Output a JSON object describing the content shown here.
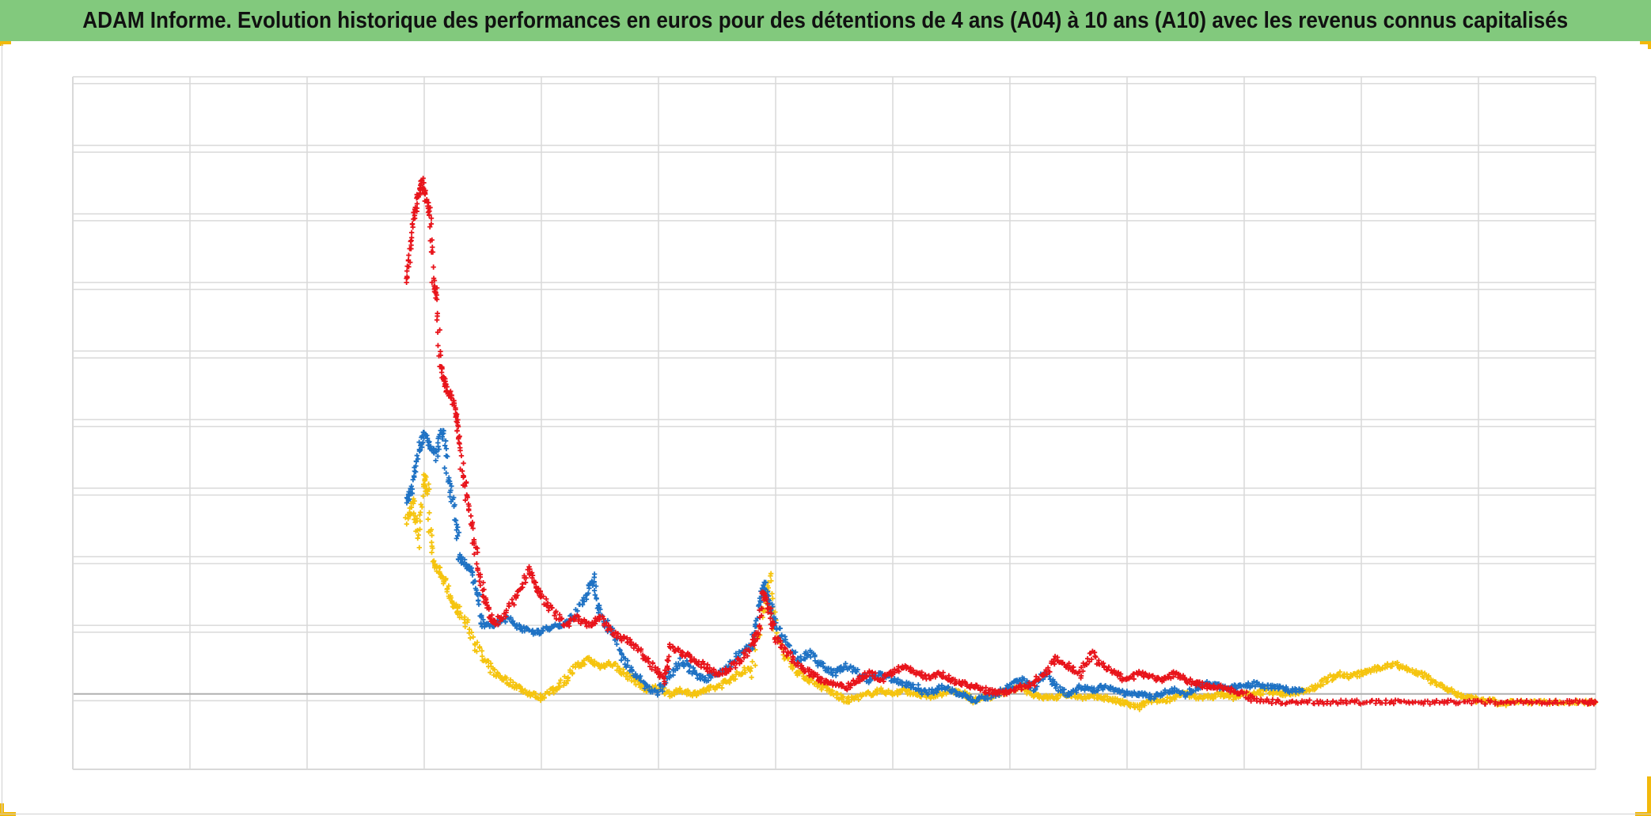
{
  "title": "ADAM Informe. Evolution historique des performances en euros pour des détentions de 4 ans (A04) à 10 ans (A10) avec les revenus connus capitalisés",
  "colors": {
    "title_bar": "#82c97d",
    "corner_marks": "#f2b90c",
    "series_red": "#e8141b",
    "series_blue": "#1f72c4",
    "series_yellow": "#f5c40f",
    "grid": "#d9d9d9",
    "baseline": "#b0b0b0"
  },
  "chart_data": {
    "type": "scatter",
    "title": "ADAM Informe. Evolution historique des performances en euros pour des détentions de 4 ans (A04) à 10 ans (A10) avec les revenus connus capitalisés",
    "xlabel": "",
    "ylabel": "",
    "x_ticks_shown": false,
    "y_ticks_shown": false,
    "xlim": [
      0,
      13
    ],
    "ylim": [
      -1.1,
      9
    ],
    "grid": true,
    "legend": "none",
    "marker": "plus",
    "series": [
      {
        "color": "#f5c40f",
        "points": [
          [
            2.85,
            2.5
          ],
          [
            2.9,
            2.8
          ],
          [
            2.95,
            2.3
          ],
          [
            3.0,
            3.2
          ],
          [
            3.03,
            2.9
          ],
          [
            3.08,
            1.9
          ],
          [
            3.12,
            1.8
          ],
          [
            3.18,
            1.6
          ],
          [
            3.25,
            1.3
          ],
          [
            3.3,
            1.2
          ],
          [
            3.4,
            0.9
          ],
          [
            3.5,
            0.5
          ],
          [
            3.6,
            0.3
          ],
          [
            3.7,
            0.2
          ],
          [
            3.8,
            0.1
          ],
          [
            3.9,
            0.0
          ],
          [
            4.0,
            -0.05
          ],
          [
            4.1,
            0.05
          ],
          [
            4.2,
            0.2
          ],
          [
            4.3,
            0.4
          ],
          [
            4.4,
            0.5
          ],
          [
            4.5,
            0.4
          ],
          [
            4.6,
            0.45
          ],
          [
            4.7,
            0.3
          ],
          [
            4.8,
            0.2
          ],
          [
            4.9,
            0.05
          ],
          [
            5.0,
            0.1
          ],
          [
            5.1,
            0.0
          ],
          [
            5.2,
            0.05
          ],
          [
            5.3,
            0.0
          ],
          [
            5.4,
            0.05
          ],
          [
            5.5,
            0.1
          ],
          [
            5.6,
            0.2
          ],
          [
            5.7,
            0.3
          ],
          [
            5.8,
            0.4
          ],
          [
            5.9,
            1.2
          ],
          [
            5.95,
            1.7
          ],
          [
            6.0,
            0.9
          ],
          [
            6.1,
            0.5
          ],
          [
            6.2,
            0.3
          ],
          [
            6.3,
            0.2
          ],
          [
            6.4,
            0.1
          ],
          [
            6.5,
            0.0
          ],
          [
            6.6,
            -0.1
          ],
          [
            6.7,
            -0.05
          ],
          [
            6.8,
            0.0
          ],
          [
            6.9,
            0.05
          ],
          [
            7.0,
            0.0
          ],
          [
            7.1,
            0.05
          ],
          [
            7.2,
            0.0
          ],
          [
            7.3,
            -0.05
          ],
          [
            7.4,
            0.0
          ],
          [
            7.5,
            0.05
          ],
          [
            7.6,
            0.0
          ],
          [
            7.7,
            -0.1
          ],
          [
            7.8,
            -0.05
          ],
          [
            7.9,
            0.0
          ],
          [
            8.0,
            0.05
          ],
          [
            8.1,
            0.1
          ],
          [
            8.2,
            0.0
          ],
          [
            8.3,
            -0.05
          ],
          [
            8.4,
            -0.05
          ],
          [
            8.5,
            0.0
          ],
          [
            8.6,
            -0.05
          ],
          [
            8.7,
            -0.05
          ],
          [
            8.8,
            -0.05
          ],
          [
            8.9,
            -0.1
          ],
          [
            9.0,
            -0.15
          ],
          [
            9.1,
            -0.2
          ],
          [
            9.2,
            -0.1
          ],
          [
            9.3,
            -0.1
          ],
          [
            9.4,
            -0.05
          ],
          [
            9.5,
            0.0
          ],
          [
            9.6,
            -0.05
          ],
          [
            9.7,
            -0.05
          ],
          [
            9.8,
            0.0
          ],
          [
            9.9,
            -0.05
          ],
          [
            10.0,
            0.0
          ],
          [
            10.1,
            0.0
          ],
          [
            10.2,
            0.05
          ],
          [
            10.3,
            0.0
          ],
          [
            10.4,
            0.0
          ],
          [
            10.5,
            0.05
          ],
          [
            10.6,
            0.1
          ],
          [
            10.7,
            0.2
          ],
          [
            10.8,
            0.3
          ],
          [
            10.9,
            0.25
          ],
          [
            11.0,
            0.3
          ],
          [
            11.1,
            0.35
          ],
          [
            11.2,
            0.4
          ],
          [
            11.3,
            0.45
          ],
          [
            11.4,
            0.35
          ],
          [
            11.5,
            0.3
          ],
          [
            11.6,
            0.2
          ],
          [
            11.7,
            0.1
          ],
          [
            11.8,
            0.0
          ],
          [
            11.9,
            -0.05
          ],
          [
            12.0,
            -0.1
          ],
          [
            12.1,
            -0.1
          ],
          [
            12.2,
            -0.15
          ],
          [
            12.3,
            -0.12
          ],
          [
            12.5,
            -0.12
          ],
          [
            12.7,
            -0.12
          ],
          [
            12.9,
            -0.12
          ],
          [
            13.0,
            -0.12
          ]
        ]
      },
      {
        "color": "#1f72c4",
        "points": [
          [
            2.85,
            2.8
          ],
          [
            2.9,
            3.0
          ],
          [
            2.95,
            3.5
          ],
          [
            3.0,
            3.8
          ],
          [
            3.05,
            3.6
          ],
          [
            3.1,
            3.5
          ],
          [
            3.15,
            3.9
          ],
          [
            3.2,
            3.2
          ],
          [
            3.25,
            2.8
          ],
          [
            3.3,
            2.0
          ],
          [
            3.35,
            1.9
          ],
          [
            3.4,
            1.8
          ],
          [
            3.45,
            1.5
          ],
          [
            3.5,
            1.0
          ],
          [
            3.6,
            1.0
          ],
          [
            3.7,
            1.1
          ],
          [
            3.8,
            1.0
          ],
          [
            3.9,
            0.9
          ],
          [
            4.0,
            0.9
          ],
          [
            4.1,
            1.0
          ],
          [
            4.2,
            1.0
          ],
          [
            4.3,
            1.2
          ],
          [
            4.4,
            1.5
          ],
          [
            4.45,
            1.7
          ],
          [
            4.5,
            1.2
          ],
          [
            4.6,
            0.9
          ],
          [
            4.7,
            0.5
          ],
          [
            4.8,
            0.3
          ],
          [
            4.9,
            0.1
          ],
          [
            5.0,
            0.0
          ],
          [
            5.1,
            0.3
          ],
          [
            5.2,
            0.5
          ],
          [
            5.3,
            0.3
          ],
          [
            5.4,
            0.2
          ],
          [
            5.5,
            0.3
          ],
          [
            5.6,
            0.4
          ],
          [
            5.7,
            0.6
          ],
          [
            5.8,
            0.7
          ],
          [
            5.85,
            1.2
          ],
          [
            5.9,
            1.6
          ],
          [
            5.95,
            1.3
          ],
          [
            6.0,
            1.0
          ],
          [
            6.1,
            0.7
          ],
          [
            6.2,
            0.5
          ],
          [
            6.3,
            0.6
          ],
          [
            6.4,
            0.4
          ],
          [
            6.5,
            0.3
          ],
          [
            6.6,
            0.4
          ],
          [
            6.7,
            0.3
          ],
          [
            6.8,
            0.2
          ],
          [
            6.9,
            0.3
          ],
          [
            7.0,
            0.2
          ],
          [
            7.1,
            0.15
          ],
          [
            7.2,
            0.1
          ],
          [
            7.3,
            0.0
          ],
          [
            7.4,
            0.1
          ],
          [
            7.5,
            0.05
          ],
          [
            7.6,
            0.0
          ],
          [
            7.7,
            -0.1
          ],
          [
            7.8,
            -0.05
          ],
          [
            7.9,
            0.0
          ],
          [
            8.0,
            0.1
          ],
          [
            8.1,
            0.2
          ],
          [
            8.2,
            0.1
          ],
          [
            8.3,
            0.3
          ],
          [
            8.4,
            0.1
          ],
          [
            8.5,
            0.0
          ],
          [
            8.6,
            0.1
          ],
          [
            8.7,
            0.05
          ],
          [
            8.8,
            0.1
          ],
          [
            8.9,
            0.05
          ],
          [
            9.0,
            0.0
          ],
          [
            9.1,
            0.0
          ],
          [
            9.2,
            -0.05
          ],
          [
            9.3,
            0.0
          ],
          [
            9.4,
            0.05
          ],
          [
            9.5,
            0.0
          ],
          [
            9.6,
            0.1
          ],
          [
            9.7,
            0.15
          ],
          [
            9.8,
            0.1
          ],
          [
            9.9,
            0.1
          ],
          [
            10.0,
            0.1
          ],
          [
            10.1,
            0.15
          ],
          [
            10.2,
            0.1
          ],
          [
            10.3,
            0.1
          ],
          [
            10.4,
            0.05
          ],
          [
            10.5,
            0.05
          ]
        ]
      },
      {
        "color": "#e8141b",
        "points": [
          [
            2.85,
            6.0
          ],
          [
            2.88,
            6.5
          ],
          [
            2.92,
            7.0
          ],
          [
            2.95,
            7.3
          ],
          [
            2.98,
            7.5
          ],
          [
            3.02,
            7.2
          ],
          [
            3.05,
            7.0
          ],
          [
            3.08,
            6.0
          ],
          [
            3.1,
            5.8
          ],
          [
            3.14,
            4.8
          ],
          [
            3.17,
            4.6
          ],
          [
            3.2,
            4.4
          ],
          [
            3.25,
            4.3
          ],
          [
            3.28,
            4.0
          ],
          [
            3.3,
            3.6
          ],
          [
            3.35,
            3.0
          ],
          [
            3.4,
            2.5
          ],
          [
            3.45,
            2.0
          ],
          [
            3.5,
            1.5
          ],
          [
            3.55,
            1.2
          ],
          [
            3.6,
            1.0
          ],
          [
            3.7,
            1.2
          ],
          [
            3.8,
            1.5
          ],
          [
            3.9,
            1.8
          ],
          [
            3.95,
            1.6
          ],
          [
            4.0,
            1.4
          ],
          [
            4.1,
            1.2
          ],
          [
            4.2,
            1.0
          ],
          [
            4.3,
            1.1
          ],
          [
            4.4,
            1.0
          ],
          [
            4.5,
            1.1
          ],
          [
            4.6,
            0.9
          ],
          [
            4.7,
            0.8
          ],
          [
            4.8,
            0.7
          ],
          [
            4.9,
            0.5
          ],
          [
            5.0,
            0.3
          ],
          [
            5.05,
            0.2
          ],
          [
            5.1,
            0.7
          ],
          [
            5.2,
            0.6
          ],
          [
            5.3,
            0.5
          ],
          [
            5.4,
            0.4
          ],
          [
            5.5,
            0.3
          ],
          [
            5.6,
            0.35
          ],
          [
            5.7,
            0.5
          ],
          [
            5.8,
            0.7
          ],
          [
            5.85,
            0.9
          ],
          [
            5.9,
            1.5
          ],
          [
            5.95,
            1.2
          ],
          [
            6.0,
            0.8
          ],
          [
            6.1,
            0.6
          ],
          [
            6.2,
            0.4
          ],
          [
            6.3,
            0.3
          ],
          [
            6.4,
            0.2
          ],
          [
            6.5,
            0.15
          ],
          [
            6.6,
            0.1
          ],
          [
            6.7,
            0.2
          ],
          [
            6.8,
            0.3
          ],
          [
            6.9,
            0.2
          ],
          [
            7.0,
            0.3
          ],
          [
            7.1,
            0.4
          ],
          [
            7.2,
            0.3
          ],
          [
            7.3,
            0.25
          ],
          [
            7.4,
            0.3
          ],
          [
            7.5,
            0.2
          ],
          [
            7.6,
            0.15
          ],
          [
            7.7,
            0.1
          ],
          [
            7.8,
            0.05
          ],
          [
            7.9,
            0.0
          ],
          [
            8.0,
            0.05
          ],
          [
            8.1,
            0.1
          ],
          [
            8.2,
            0.15
          ],
          [
            8.3,
            0.3
          ],
          [
            8.4,
            0.5
          ],
          [
            8.5,
            0.4
          ],
          [
            8.6,
            0.3
          ],
          [
            8.7,
            0.6
          ],
          [
            8.8,
            0.4
          ],
          [
            8.9,
            0.3
          ],
          [
            9.0,
            0.2
          ],
          [
            9.1,
            0.3
          ],
          [
            9.2,
            0.25
          ],
          [
            9.3,
            0.2
          ],
          [
            9.4,
            0.3
          ],
          [
            9.5,
            0.2
          ],
          [
            9.6,
            0.15
          ],
          [
            9.7,
            0.1
          ],
          [
            9.8,
            0.1
          ],
          [
            9.9,
            0.05
          ],
          [
            10.0,
            0.0
          ],
          [
            10.1,
            -0.1
          ],
          [
            10.3,
            -0.12
          ],
          [
            10.5,
            -0.12
          ],
          [
            10.7,
            -0.12
          ],
          [
            10.9,
            -0.12
          ],
          [
            11.1,
            -0.12
          ],
          [
            11.3,
            -0.12
          ],
          [
            11.5,
            -0.12
          ],
          [
            11.7,
            -0.12
          ],
          [
            11.9,
            -0.12
          ],
          [
            12.1,
            -0.12
          ],
          [
            12.3,
            -0.12
          ],
          [
            12.5,
            -0.12
          ],
          [
            12.7,
            -0.12
          ],
          [
            12.9,
            -0.12
          ],
          [
            13.0,
            -0.12
          ]
        ]
      }
    ]
  }
}
